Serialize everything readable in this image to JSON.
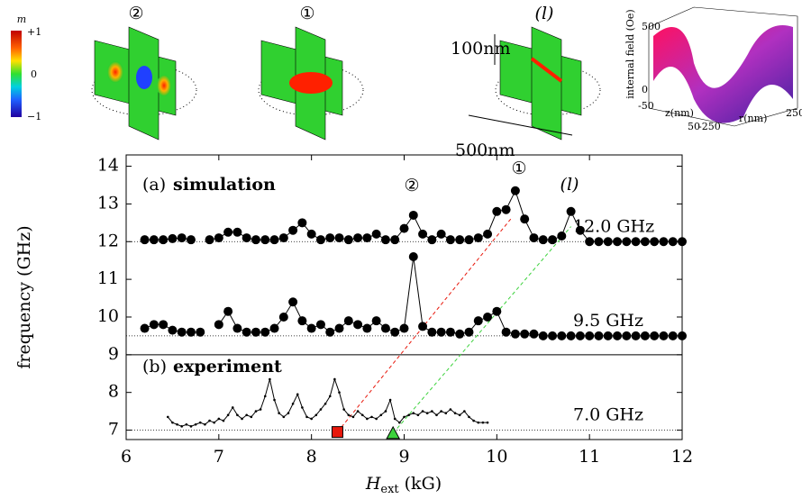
{
  "chart_data": {
    "type": "line",
    "xlabel": {
      "symbol": "H",
      "subscript": "ext",
      "unit": "(kG)"
    },
    "ylabel": "frequency (GHz)",
    "xlim": [
      6,
      12
    ],
    "ylim": [
      6.75,
      14.3
    ],
    "xticks": [
      6,
      7,
      8,
      9,
      10,
      11,
      12
    ],
    "yticks": [
      7,
      8,
      9,
      10,
      11,
      12,
      13,
      14
    ],
    "panel_divider": 9,
    "reference_lines": [
      {
        "value": 12,
        "label": "12.0 GHz"
      },
      {
        "value": 9.5,
        "label": "9.5 GHz"
      },
      {
        "value": 7,
        "label": "7.0 GHz"
      }
    ],
    "annotations": {
      "panel_a": "(a)",
      "panel_a_title": "simulation",
      "panel_b": "(b)",
      "panel_b_title": "experiment",
      "mode_2": "②",
      "mode_1": "①",
      "mode_l": "(l)"
    },
    "series": [
      {
        "color": "#000000",
        "marker": "circle",
        "x": [
          6.2,
          6.3,
          6.4,
          6.5,
          6.6,
          6.7,
          6.8,
          6.9,
          7.0,
          7.1,
          7.2,
          7.3,
          7.4,
          7.5,
          7.6,
          7.7,
          7.8,
          7.9,
          8.0,
          8.1,
          8.2,
          8.3,
          8.4,
          8.5,
          8.6,
          8.7,
          8.8,
          8.9,
          9.0,
          9.1,
          9.2,
          9.3,
          9.4,
          9.5,
          9.6,
          9.7,
          9.8,
          9.9,
          10.0,
          10.1,
          10.2,
          10.3,
          10.4,
          10.5,
          10.6,
          10.7,
          10.8,
          10.9,
          11.0,
          11.1,
          11.2,
          11.3,
          11.4,
          11.5,
          11.6,
          11.7,
          11.8,
          11.9,
          12.0
        ],
        "values": [
          12.05,
          12.05,
          12.05,
          12.08,
          12.1,
          12.05,
          null,
          12.05,
          12.1,
          12.25,
          12.25,
          12.1,
          12.05,
          12.05,
          12.05,
          12.1,
          12.3,
          12.5,
          12.2,
          12.05,
          12.1,
          12.1,
          12.05,
          12.1,
          12.1,
          12.2,
          12.05,
          12.05,
          12.35,
          12.7,
          12.2,
          12.05,
          12.2,
          12.05,
          12.05,
          12.05,
          12.1,
          12.2,
          12.8,
          12.85,
          13.35,
          12.6,
          12.1,
          12.05,
          12.05,
          12.15,
          12.8,
          12.3,
          12.0,
          12.0,
          12.0,
          12.0,
          12.0,
          12.0,
          12.0,
          12.0,
          12.0,
          12.0,
          12.0
        ]
      },
      {
        "color": "#000000",
        "marker": "circle",
        "x": [
          6.2,
          6.3,
          6.4,
          6.5,
          6.6,
          6.7,
          6.8,
          6.9,
          7.0,
          7.1,
          7.2,
          7.3,
          7.4,
          7.5,
          7.6,
          7.7,
          7.8,
          7.9,
          8.0,
          8.1,
          8.2,
          8.3,
          8.4,
          8.5,
          8.6,
          8.7,
          8.8,
          8.9,
          9.0,
          9.1,
          9.2,
          9.3,
          9.4,
          9.5,
          9.6,
          9.7,
          9.8,
          9.9,
          10.0,
          10.1,
          10.2,
          10.3,
          10.4,
          10.5,
          10.6,
          10.7,
          10.8,
          10.9,
          11.0,
          11.1,
          11.2,
          11.3,
          11.4,
          11.5,
          11.6,
          11.7,
          11.8,
          11.9,
          12.0
        ],
        "values": [
          9.7,
          9.8,
          9.8,
          9.65,
          9.6,
          9.6,
          9.6,
          null,
          9.8,
          10.15,
          9.7,
          9.6,
          9.6,
          9.6,
          9.7,
          10.0,
          10.4,
          9.9,
          9.7,
          9.8,
          9.6,
          9.7,
          9.9,
          9.8,
          9.7,
          9.9,
          9.7,
          9.6,
          9.7,
          11.6,
          9.75,
          9.6,
          9.6,
          9.6,
          9.55,
          9.6,
          9.9,
          10.0,
          10.15,
          9.6,
          9.55,
          9.55,
          9.55,
          9.5,
          9.5,
          9.5,
          9.5,
          9.5,
          9.5,
          9.5,
          9.5,
          9.5,
          9.5,
          9.5,
          9.5,
          9.5,
          9.5,
          9.5,
          9.5
        ]
      },
      {
        "color": "#000000",
        "marker": "dot",
        "x": [
          6.45,
          6.5,
          6.55,
          6.6,
          6.65,
          6.7,
          6.75,
          6.8,
          6.85,
          6.9,
          6.95,
          7.0,
          7.05,
          7.1,
          7.15,
          7.2,
          7.25,
          7.3,
          7.35,
          7.4,
          7.45,
          7.5,
          7.55,
          7.6,
          7.65,
          7.7,
          7.75,
          7.8,
          7.85,
          7.9,
          7.95,
          8.0,
          8.05,
          8.1,
          8.15,
          8.2,
          8.25,
          8.3,
          8.35,
          8.4,
          8.45,
          8.5,
          8.55,
          8.6,
          8.65,
          8.7,
          8.75,
          8.8,
          8.85,
          8.9,
          8.95,
          9.0,
          9.05,
          9.1,
          9.15,
          9.2,
          9.25,
          9.3,
          9.35,
          9.4,
          9.45,
          9.5,
          9.55,
          9.6,
          9.65,
          9.7,
          9.75,
          9.8,
          9.85,
          9.9
        ],
        "values": [
          7.35,
          7.2,
          7.15,
          7.1,
          7.15,
          7.1,
          7.15,
          7.2,
          7.15,
          7.25,
          7.2,
          7.3,
          7.25,
          7.4,
          7.6,
          7.4,
          7.3,
          7.4,
          7.35,
          7.5,
          7.55,
          7.9,
          8.35,
          7.8,
          7.45,
          7.35,
          7.45,
          7.7,
          7.95,
          7.6,
          7.35,
          7.3,
          7.4,
          7.55,
          7.7,
          7.9,
          8.35,
          8.0,
          7.55,
          7.4,
          7.35,
          7.5,
          7.4,
          7.3,
          7.35,
          7.3,
          7.4,
          7.5,
          7.8,
          7.3,
          7.2,
          7.35,
          7.4,
          7.45,
          7.4,
          7.5,
          7.45,
          7.5,
          7.4,
          7.5,
          7.45,
          7.55,
          7.45,
          7.4,
          7.5,
          7.35,
          7.25,
          7.2,
          7.2,
          7.2
        ]
      }
    ],
    "markers": [
      {
        "shape": "square",
        "color": "#e8180c",
        "x": 8.28,
        "y": 6.95,
        "to": [
          10.15,
          12.6
        ]
      },
      {
        "shape": "triangle",
        "color": "#3cd23c",
        "x": 8.88,
        "y": 6.92,
        "to": [
          10.8,
          12.4
        ]
      }
    ]
  },
  "insets": {
    "colorbar": {
      "title": "m",
      "ticks": [
        "+1",
        "0",
        "−1"
      ]
    },
    "snapshots": {
      "mode_2": "②",
      "mode_1": "①",
      "mode_l": "(l)",
      "height": "100nm",
      "width": "500nm"
    },
    "field_plot": {
      "zlabel": "internal field (Oe)",
      "zticks": [
        "500",
        "0"
      ],
      "xlabel": "z(nm)",
      "xticks": [
        "-50",
        "50"
      ],
      "ylabel": "r(nm)",
      "yticks": [
        "-250",
        "250"
      ]
    }
  }
}
